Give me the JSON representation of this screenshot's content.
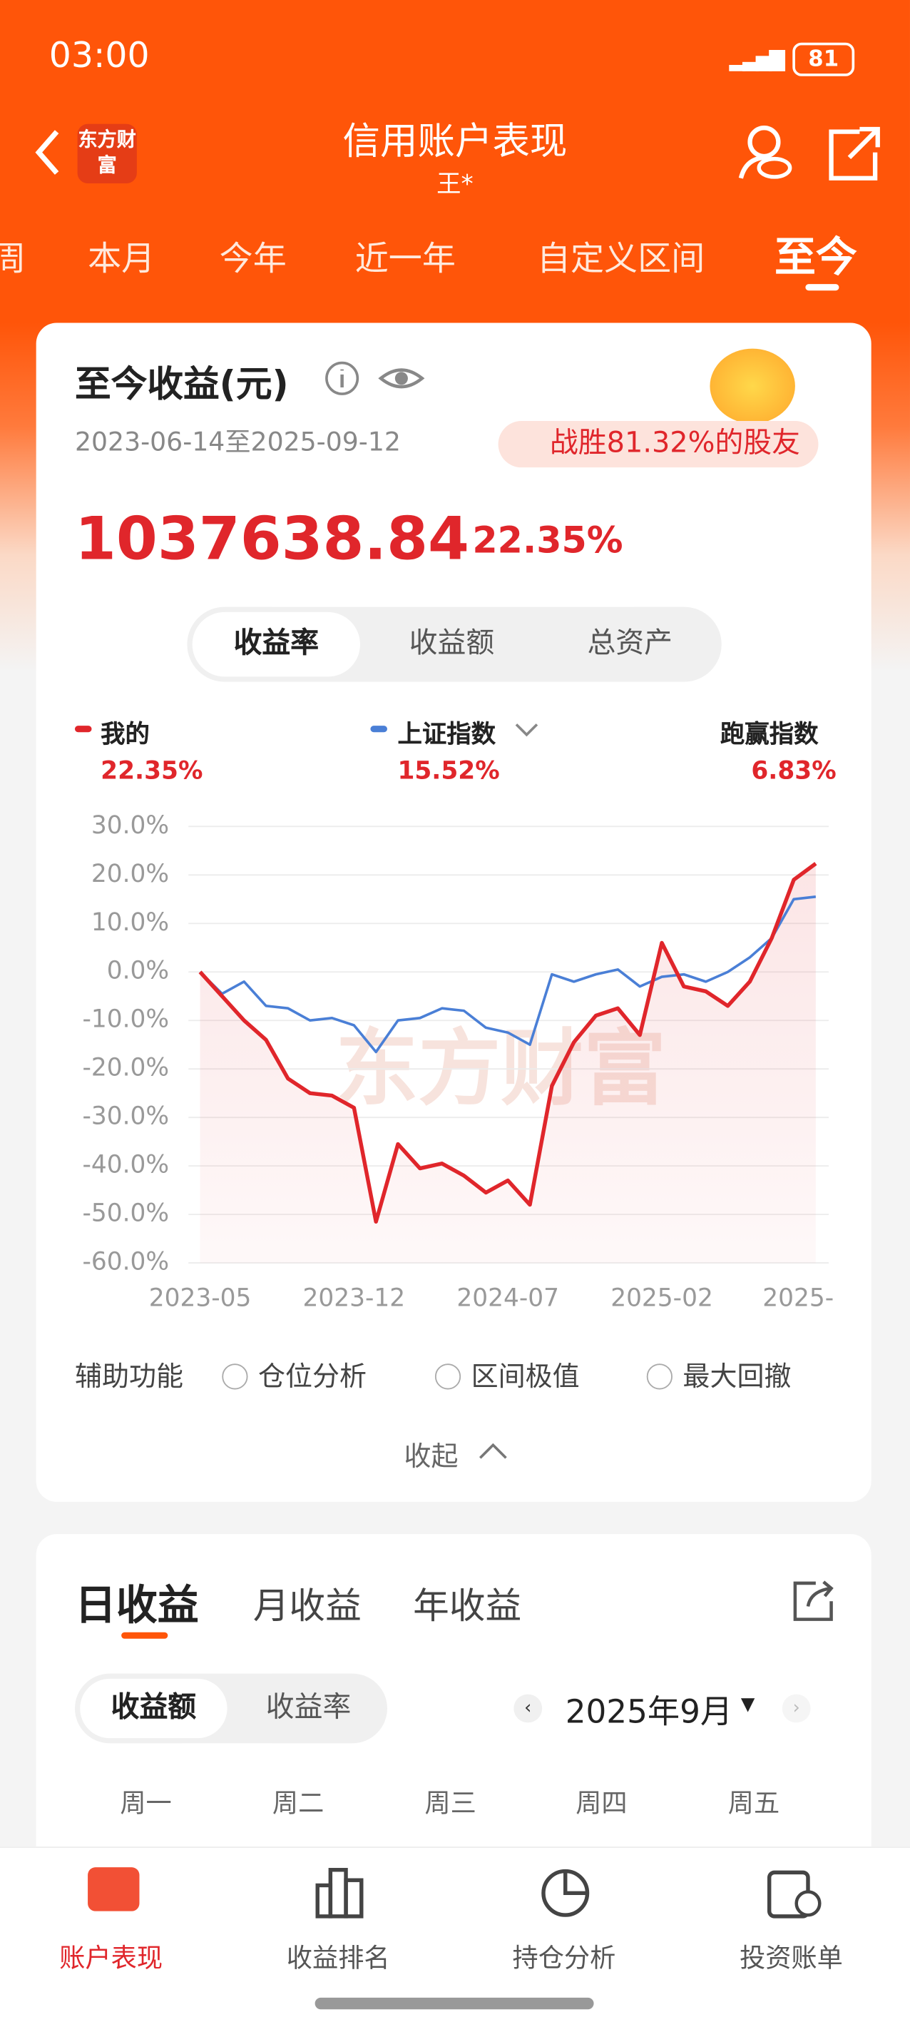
{
  "status": {
    "time": "03:00",
    "battery": "81"
  },
  "header": {
    "brand": "东方财富",
    "title": "信用账户表现",
    "subtitle": "王*"
  },
  "tabs": [
    "周",
    "本月",
    "今年",
    "近一年",
    "自定义区间",
    "至今"
  ],
  "summary": {
    "title": "至今收益(元)",
    "range": "2023-06-14至2025-09-12",
    "badge": "战胜81.32%的股友",
    "amount": "1037638.84",
    "rate": "22.35%"
  },
  "segments": [
    "收益率",
    "收益额",
    "总资产"
  ],
  "legend": [
    {
      "name": "我的",
      "value": "22.35%"
    },
    {
      "name": "上证指数",
      "value": "15.52%"
    },
    {
      "name": "跑赢指数",
      "value": "6.83%"
    }
  ],
  "chart_data": {
    "type": "line",
    "categories": [
      "2023-05",
      null,
      null,
      null,
      null,
      null,
      null,
      "2023-12",
      null,
      null,
      null,
      null,
      null,
      null,
      "2024-07",
      null,
      null,
      null,
      null,
      null,
      null,
      "2025-02",
      null,
      null,
      null,
      null,
      null,
      null,
      "2025-"
    ],
    "series": [
      {
        "name": "我的",
        "color": "#e0262b",
        "values": [
          0,
          -5,
          -10,
          -14,
          -22,
          -25,
          -25.5,
          -28,
          -51.5,
          -35.5,
          -40.5,
          -39.5,
          -42,
          -45.5,
          -43,
          -48,
          -23.5,
          -14.5,
          -9,
          -7.5,
          -13,
          6,
          -3,
          -4,
          -7,
          -2,
          7,
          19,
          22.35
        ]
      },
      {
        "name": "上证指数",
        "color": "#4a7fd6",
        "values": [
          0,
          -4.5,
          -2,
          -7,
          -7.5,
          -10,
          -9.5,
          -11,
          -16.5,
          -10,
          -9.5,
          -7.5,
          -8,
          -11.5,
          -12.5,
          -15,
          -0.5,
          -2,
          -0.5,
          0.5,
          -3,
          -1,
          -0.5,
          -2,
          0,
          3,
          7,
          15,
          15.52
        ]
      }
    ],
    "ylim": [
      -60,
      30
    ],
    "yticks": [
      {
        "value": 30,
        "label": "30.0%"
      },
      {
        "value": 20,
        "label": "20.0%"
      },
      {
        "value": 10,
        "label": "10.0%"
      },
      {
        "value": 0,
        "label": "0.0%"
      },
      {
        "value": -10,
        "label": "-10.0%"
      },
      {
        "value": -20,
        "label": "-20.0%"
      },
      {
        "value": -30,
        "label": "-30.0%"
      },
      {
        "value": -40,
        "label": "-40.0%"
      },
      {
        "value": -50,
        "label": "-50.0%"
      },
      {
        "value": -60,
        "label": "-60.0%"
      }
    ],
    "grid": true
  },
  "tools": {
    "label": "辅助功能",
    "options": [
      "仓位分析",
      "区间极值",
      "最大回撤"
    ],
    "collapse": "收起"
  },
  "income": {
    "tabs": [
      "日收益",
      "月收益",
      "年收益"
    ],
    "toggle": [
      "收益额",
      "收益率"
    ],
    "month": "2025年9月",
    "weekdays": [
      "周一",
      "周二",
      "周三",
      "周四",
      "周五"
    ]
  },
  "nav": [
    "账户表现",
    "收益排名",
    "持仓分析",
    "投资账单"
  ]
}
